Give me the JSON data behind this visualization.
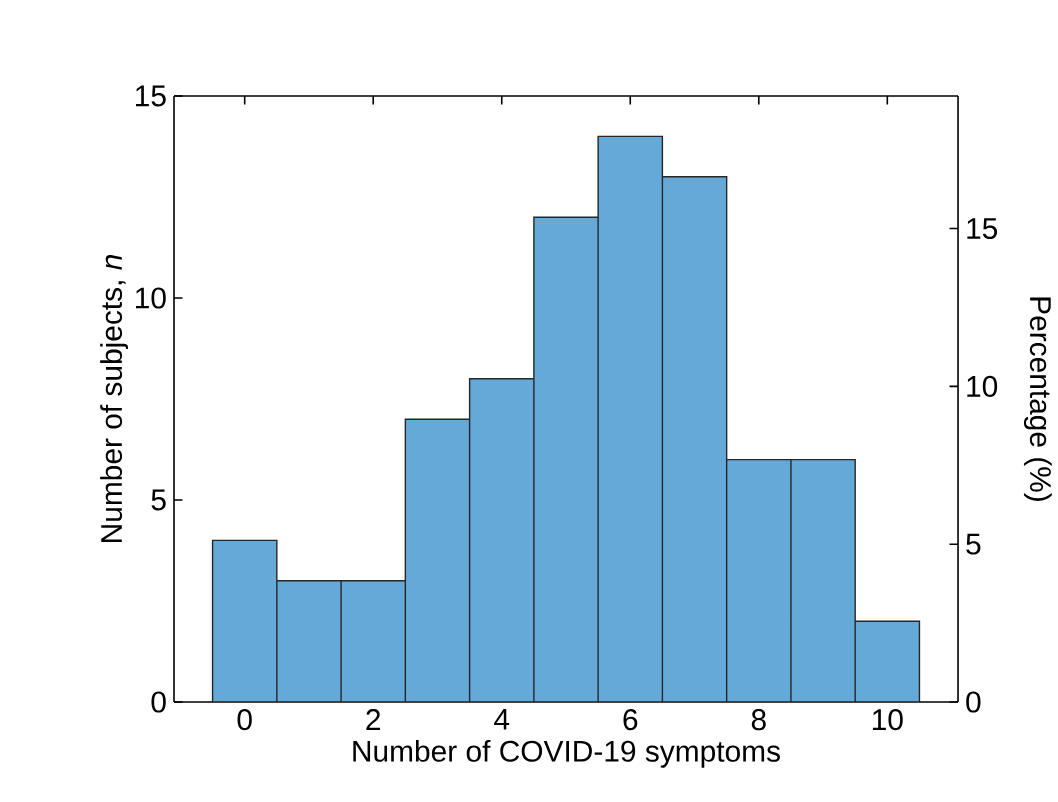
{
  "chart_data": {
    "type": "histogram",
    "xlabel": "Number of COVID-19 symptoms",
    "ylabel": "Number of subjects, *n*",
    "y2label": "Percentage (%)",
    "bins": [
      -0.5,
      0.5,
      1.5,
      2.5,
      3.5,
      4.5,
      5.5,
      6.5,
      7.5,
      8.5,
      9.5,
      10.5
    ],
    "values": [
      4,
      3,
      3,
      7,
      8,
      12,
      14,
      13,
      6,
      6,
      2
    ],
    "color": "#64a9d8",
    "xlim": [
      -1.1,
      11.1
    ],
    "xticks": [
      0,
      2,
      4,
      6,
      8,
      10
    ],
    "ylim": [
      0,
      15
    ],
    "yticks": [
      0,
      5,
      10,
      15
    ],
    "y2lim": [
      0,
      19.2
    ],
    "y2ticks": [
      0,
      5,
      10,
      15
    ],
    "grid": false
  }
}
